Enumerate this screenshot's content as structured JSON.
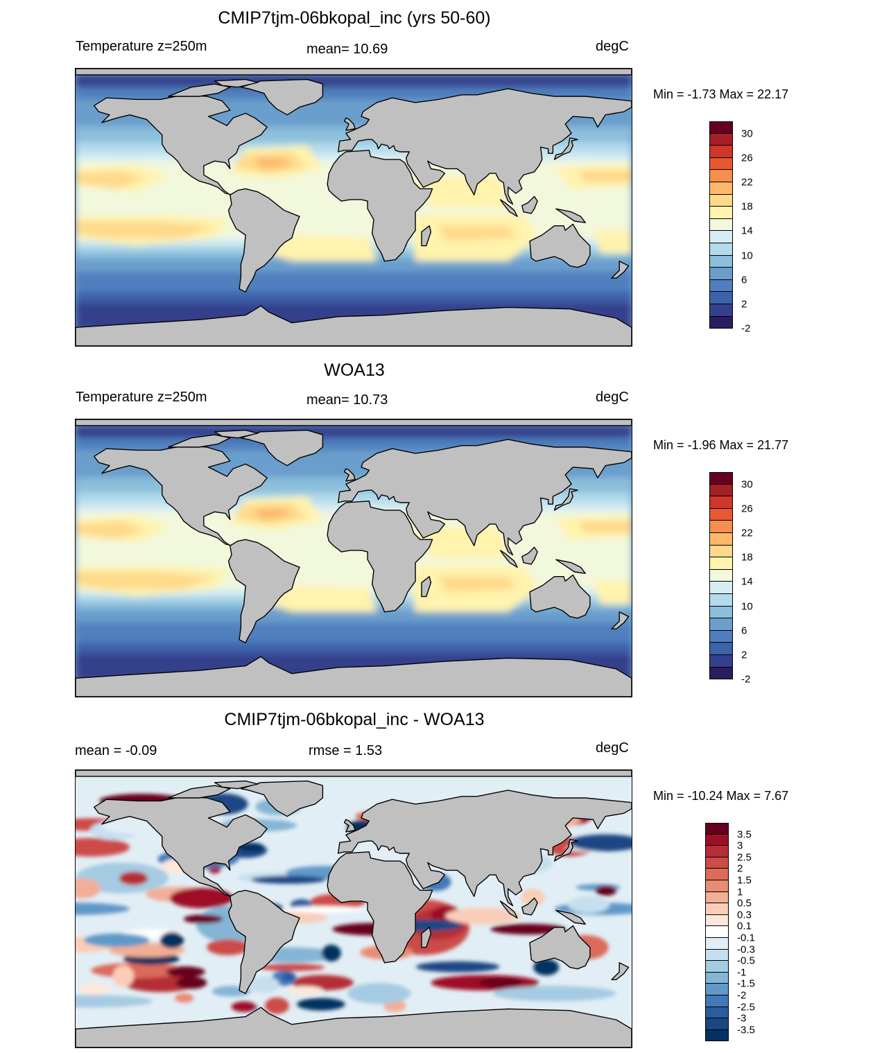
{
  "panels": [
    {
      "title": "CMIP7tjm-06bkopal_inc (yrs 50-60)",
      "left_label": "Temperature z=250m",
      "center_label": "mean=  10.69",
      "units": "degC",
      "minmax": "Min =  -1.73 Max =  22.17",
      "colorbar": {
        "colors": [
          "#67001f",
          "#a51f27",
          "#d0362a",
          "#e8582f",
          "#f68e4e",
          "#fdb86c",
          "#fed98b",
          "#fff3ad",
          "#f2f8dc",
          "#d6edf3",
          "#b3dbeb",
          "#8cbfdc",
          "#6a9ecc",
          "#4f7fbe",
          "#3c62a9",
          "#35408c",
          "#2b1d5f"
        ],
        "labels": [
          "30",
          "26",
          "22",
          "18",
          "14",
          "10",
          "6",
          "2",
          "-2"
        ]
      },
      "fields": {
        "type": "temperature"
      }
    },
    {
      "title": "WOA13",
      "left_label": "Temperature z=250m",
      "center_label": "mean=  10.73",
      "units": "degC",
      "minmax": "Min =  -1.96 Max =  21.77",
      "colorbar": {
        "colors": [
          "#67001f",
          "#a51f27",
          "#d0362a",
          "#e8582f",
          "#f68e4e",
          "#fdb86c",
          "#fed98b",
          "#fff3ad",
          "#f2f8dc",
          "#d6edf3",
          "#b3dbeb",
          "#8cbfdc",
          "#6a9ecc",
          "#4f7fbe",
          "#3c62a9",
          "#35408c",
          "#2b1d5f"
        ],
        "labels": [
          "30",
          "26",
          "22",
          "18",
          "14",
          "10",
          "6",
          "2",
          "-2"
        ]
      },
      "fields": {
        "type": "temperature"
      }
    },
    {
      "title": "CMIP7tjm-06bkopal_inc - WOA13",
      "left_label": "mean =  -0.09",
      "center_label": "rmse =   1.53",
      "units": "degC",
      "minmax": "Min = -10.24 Max =   7.67",
      "colorbar": {
        "colors": [
          "#67001f",
          "#9d0f26",
          "#b52d36",
          "#cc4c48",
          "#dc6b5c",
          "#e88b74",
          "#f2ae96",
          "#f9cdb8",
          "#fde7da",
          "#ffffff",
          "#e2eef5",
          "#c6dfee",
          "#a5cbe2",
          "#84b5d6",
          "#6199c8",
          "#4279b7",
          "#2a5c9f",
          "#1a4684",
          "#053061"
        ],
        "labels": [
          "3.5",
          "3",
          "2.5",
          "2",
          "1.5",
          "1",
          "0.5",
          "0.3",
          "0.1",
          "-0.1",
          "-0.3",
          "-0.5",
          "-1",
          "-1.5",
          "-2",
          "-2.5",
          "-3",
          "-3.5"
        ]
      },
      "fields": {
        "type": "difference"
      }
    }
  ]
}
